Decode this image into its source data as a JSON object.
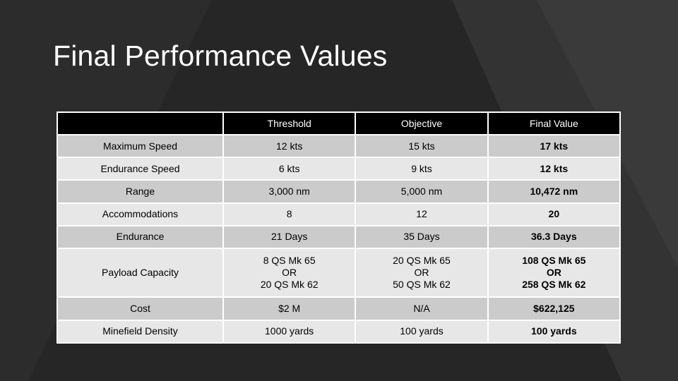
{
  "title": "Final Performance Values",
  "table": {
    "headers": [
      "",
      "Threshold",
      "Objective",
      "Final Value"
    ],
    "rows": [
      {
        "label": "Maximum Speed",
        "threshold": "12 kts",
        "objective": "15 kts",
        "final": "17 kts"
      },
      {
        "label": "Endurance Speed",
        "threshold": "6 kts",
        "objective": "9 kts",
        "final": "12 kts"
      },
      {
        "label": "Range",
        "threshold": "3,000 nm",
        "objective": "5,000 nm",
        "final": "10,472 nm"
      },
      {
        "label": "Accommodations",
        "threshold": "8",
        "objective": "12",
        "final": "20"
      },
      {
        "label": "Endurance",
        "threshold": "21 Days",
        "objective": "35 Days",
        "final": "36.3 Days"
      },
      {
        "label": "Payload Capacity",
        "threshold": "8 QS Mk 65\nOR\n20 QS Mk 62",
        "objective": "20 QS Mk 65\nOR\n50 QS Mk 62",
        "final": "108 QS Mk 65\nOR\n258 QS Mk 62"
      },
      {
        "label": "Cost",
        "threshold": "$2 M",
        "objective": "N/A",
        "final": "$622,125"
      },
      {
        "label": "Minefield Density",
        "threshold": "1000 yards",
        "objective": "100 yards",
        "final": "100 yards"
      }
    ]
  },
  "colors": {
    "background": "#262626",
    "header_background": "#000000",
    "row_dark": "#cbcbcb",
    "row_light": "#e7e7e7"
  }
}
